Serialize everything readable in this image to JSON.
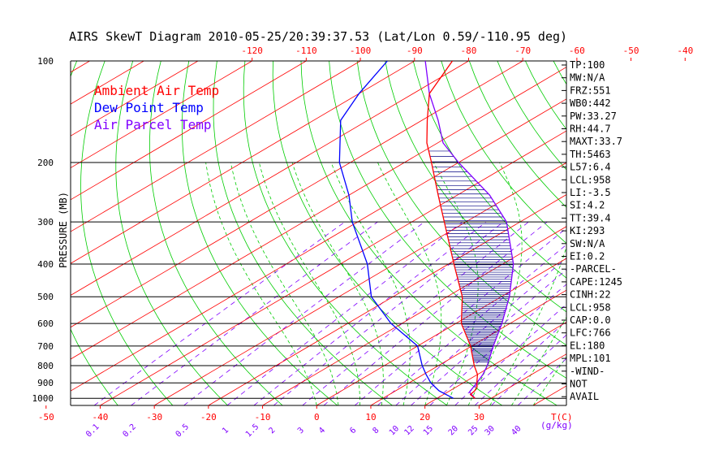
{
  "chart_data": {
    "type": "line",
    "title": "AIRS SkewT Diagram 2010-05-25/20:39:37.53 (Lat/Lon 0.59/-110.95 deg)",
    "ylabel": "PRESSURE (MB)",
    "y_scale": "log",
    "ylim": [
      100,
      1050
    ],
    "pressure_ticks": [
      "100",
      "200",
      "300",
      "400",
      "500",
      "600",
      "700",
      "800",
      "900",
      "1000"
    ],
    "bottom_temp_ticks": [
      "-50",
      "-40",
      "-30",
      "-20",
      "-10",
      "0",
      "10",
      "20",
      "30"
    ],
    "bottom_temp_unit": "T(C)",
    "top_temp_ticks": [
      "-120",
      "-110",
      "-100",
      "-90",
      "-80",
      "-70",
      "-60",
      "-50",
      "-40"
    ],
    "mixing_ratio_ticks": [
      "0.1",
      "0.2",
      "0.5",
      "1",
      "1.5",
      "2",
      "3",
      "4",
      "6",
      "8",
      "10",
      "12",
      "15",
      "20",
      "25",
      "30",
      "40"
    ],
    "mixing_ratio_unit": "(g/kg)",
    "legend": [
      {
        "name": "Ambient Air Temp",
        "color": "#ff0000"
      },
      {
        "name": "Dew Point Temp",
        "color": "#0000ff"
      },
      {
        "name": "Air Parcel Temp",
        "color": "#8000ff"
      }
    ],
    "colors": {
      "isotherm": "#ff0000",
      "dry_adiabat": "#00cc00",
      "moist_adiabat": "#00cc00",
      "mixing_ratio": "#8000ff",
      "cape_hatch": "#000080",
      "isobar": "#000000"
    },
    "series": [
      {
        "name": "Ambient Air Temp",
        "points": [
          [
            1000,
            27.0
          ],
          [
            975,
            25.0
          ],
          [
            950,
            24.6
          ],
          [
            925,
            23.8
          ],
          [
            900,
            22.5
          ],
          [
            850,
            20.0
          ],
          [
            800,
            16.6
          ],
          [
            700,
            9.8
          ],
          [
            600,
            1.0
          ],
          [
            500,
            -7.2
          ],
          [
            400,
            -19.0
          ],
          [
            300,
            -34.0
          ],
          [
            250,
            -43.5
          ],
          [
            200,
            -55.0
          ],
          [
            175,
            -62.0
          ],
          [
            150,
            -69.0
          ],
          [
            125,
            -77.0
          ],
          [
            100,
            -83.0
          ]
        ]
      },
      {
        "name": "Dew Point Temp",
        "points": [
          [
            1000,
            23.0
          ],
          [
            975,
            20.5
          ],
          [
            950,
            18.0
          ],
          [
            900,
            14.0
          ],
          [
            850,
            10.5
          ],
          [
            800,
            7.0
          ],
          [
            700,
            0.0
          ],
          [
            600,
            -12.0
          ],
          [
            500,
            -24.0
          ],
          [
            400,
            -35.0
          ],
          [
            300,
            -51.0
          ],
          [
            250,
            -60.0
          ],
          [
            200,
            -72.0
          ],
          [
            150,
            -85.0
          ],
          [
            125,
            -90.0
          ],
          [
            100,
            -95.0
          ]
        ]
      },
      {
        "name": "Air Parcel Temp",
        "points": [
          [
            1000,
            27.0
          ],
          [
            958,
            24.0
          ],
          [
            900,
            22.5
          ],
          [
            850,
            21.0
          ],
          [
            800,
            19.0
          ],
          [
            700,
            14.0
          ],
          [
            600,
            8.5
          ],
          [
            500,
            1.5
          ],
          [
            400,
            -8.0
          ],
          [
            300,
            -22.5
          ],
          [
            250,
            -34.0
          ],
          [
            200,
            -50.0
          ],
          [
            175,
            -59.0
          ],
          [
            150,
            -67.0
          ],
          [
            125,
            -77.0
          ],
          [
            100,
            -88.0
          ]
        ]
      }
    ]
  },
  "indices": [
    "TP:100",
    "MW:N/A",
    "FRZ:551",
    "WB0:442",
    "PW:33.27",
    "RH:44.7",
    "MAXT:33.7",
    "TH:5463",
    "L57:6.4",
    "LCL:958",
    "LI:-3.5",
    "SI:4.2",
    "TT:39.4",
    "KI:293",
    "SW:N/A",
    "EI:0.2",
    "-PARCEL-",
    "CAPE:1245",
    "CINH:22",
    "LCL:958",
    "CAP:0.0",
    "LFC:766",
    "EL:180",
    "MPL:101",
    "-WIND-",
    "NOT",
    "AVAIL"
  ]
}
